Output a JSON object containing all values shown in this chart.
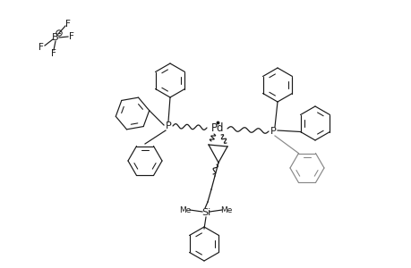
{
  "bg_color": "#ffffff",
  "line_color": "#1a1a1a",
  "figsize": [
    4.6,
    3.0
  ],
  "dpi": 100,
  "xlim": [
    0,
    460
  ],
  "ylim": [
    0,
    300
  ]
}
